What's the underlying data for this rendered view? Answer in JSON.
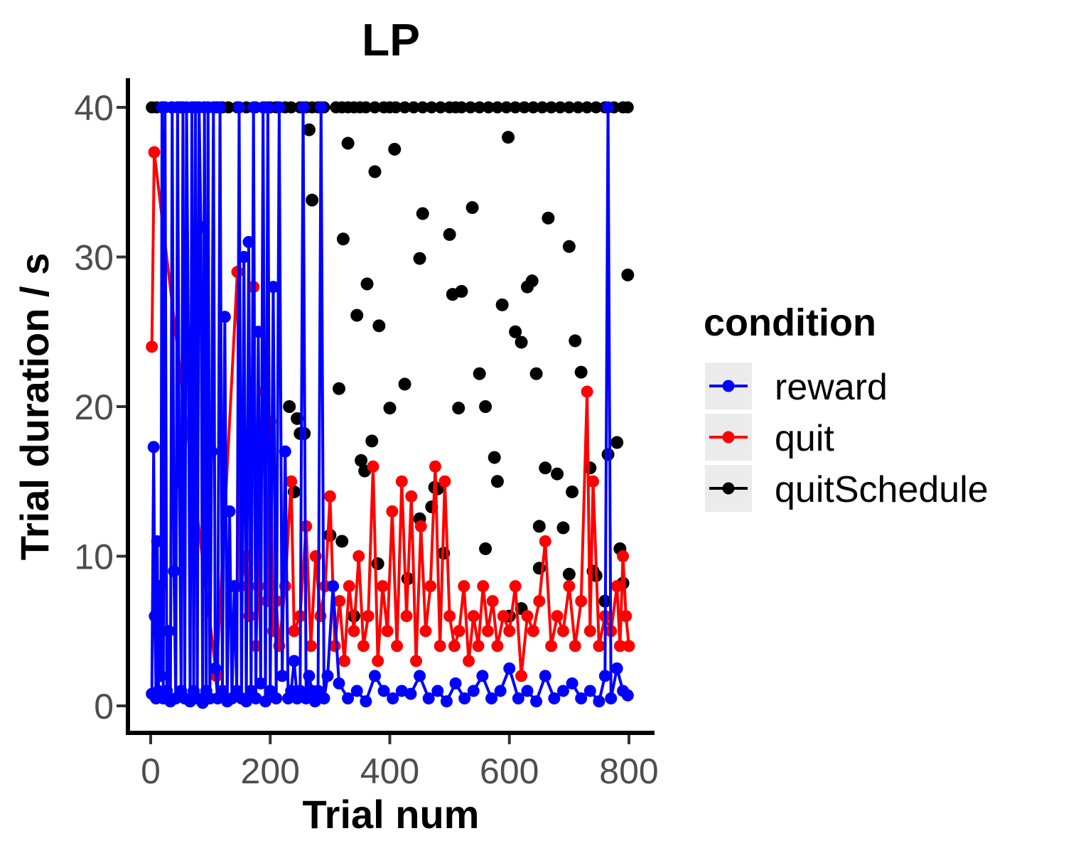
{
  "chart_data": {
    "type": "line",
    "title": "LP",
    "xlabel": "Trial num",
    "ylabel": "Trial duration / s",
    "xlim": [
      -5,
      805
    ],
    "ylim": [
      -2,
      42
    ],
    "x_ticks": [
      0,
      200,
      400,
      600,
      800
    ],
    "y_ticks": [
      0,
      10,
      20,
      30,
      40
    ],
    "legend": {
      "title": "condition",
      "position": "right"
    },
    "grid": false,
    "series": [
      {
        "name": "reward",
        "color": "#0000ff",
        "x": [
          2,
          5,
          7,
          9,
          11,
          13,
          15,
          17,
          19,
          21,
          24,
          27,
          30,
          33,
          36,
          39,
          42,
          45,
          48,
          51,
          54,
          57,
          60,
          63,
          66,
          69,
          72,
          75,
          78,
          81,
          84,
          87,
          90,
          93,
          96,
          99,
          102,
          105,
          108,
          112,
          116,
          120,
          124,
          128,
          132,
          136,
          140,
          144,
          148,
          152,
          156,
          160,
          164,
          168,
          172,
          176,
          180,
          184,
          188,
          192,
          196,
          200,
          205,
          210,
          215,
          220,
          225,
          230,
          235,
          240,
          245,
          250,
          255,
          260,
          265,
          270,
          275,
          280,
          285,
          290,
          296,
          305,
          315,
          330,
          345,
          360,
          375,
          390,
          405,
          420,
          435,
          450,
          465,
          480,
          495,
          510,
          525,
          540,
          555,
          570,
          585,
          600,
          615,
          630,
          645,
          660,
          675,
          690,
          705,
          720,
          735,
          750,
          760,
          765,
          770,
          780,
          790,
          798
        ],
        "y": [
          0.8,
          17.3,
          6,
          0.5,
          11,
          1,
          8,
          2,
          40,
          0.5,
          40,
          1,
          5,
          0.3,
          40,
          9,
          0.5,
          40,
          15,
          1,
          40,
          0.5,
          40,
          25,
          0.3,
          40,
          1,
          40,
          0.5,
          40,
          32,
          0.2,
          40,
          1,
          40,
          0.5,
          17,
          40,
          2.5,
          0.5,
          40,
          1,
          26,
          0.3,
          13,
          0.5,
          8,
          1,
          40,
          0.5,
          30,
          0.3,
          31,
          1,
          40,
          0.5,
          25,
          1.5,
          40,
          0.3,
          40,
          1,
          28,
          0.5,
          40,
          2,
          17,
          0.5,
          1,
          3,
          0.5,
          1,
          40,
          0.5,
          2,
          1,
          0.3,
          1,
          40,
          0.5,
          2,
          8,
          1.5,
          0.5,
          1,
          0.3,
          2,
          1,
          0.5,
          1,
          0.8,
          2,
          0.5,
          1,
          0.3,
          1.5,
          0.5,
          1,
          2,
          0.5,
          1,
          2.5,
          0.5,
          1,
          0.3,
          2,
          0.5,
          1,
          1.5,
          0.5,
          1,
          0.3,
          2,
          40,
          0.5,
          2.5,
          1,
          0.7
        ]
      },
      {
        "name": "quit",
        "color": "#ff0000",
        "x": [
          2,
          6,
          110,
          145,
          150,
          160,
          165,
          172,
          176,
          180,
          190,
          195,
          200,
          205,
          210,
          215,
          225,
          235,
          240,
          250,
          260,
          268,
          276,
          284,
          292,
          300,
          308,
          316,
          324,
          332,
          340,
          348,
          356,
          364,
          372,
          380,
          388,
          396,
          404,
          412,
          420,
          428,
          436,
          444,
          452,
          460,
          468,
          476,
          484,
          492,
          500,
          508,
          516,
          524,
          532,
          540,
          548,
          556,
          564,
          572,
          580,
          590,
          600,
          610,
          620,
          630,
          640,
          650,
          660,
          670,
          680,
          690,
          700,
          710,
          720,
          730,
          735,
          740,
          750,
          760,
          770,
          780,
          785,
          790,
          795,
          800
        ],
        "y": [
          24,
          37,
          2,
          29,
          8,
          10,
          6,
          28,
          4,
          8,
          21,
          7,
          19,
          5,
          7,
          4,
          8,
          15,
          5,
          6,
          12,
          4,
          10,
          6,
          8,
          14,
          4,
          7,
          3,
          8,
          5,
          10,
          4,
          6,
          16,
          3,
          8,
          5,
          13,
          4,
          15,
          6,
          14,
          3,
          12,
          5,
          8,
          16,
          4,
          15,
          6,
          4,
          5,
          8,
          3,
          6,
          4,
          8,
          5,
          7,
          4,
          6,
          5,
          8,
          2,
          6,
          5,
          7,
          11,
          4,
          6,
          5,
          8,
          4,
          7,
          21,
          5,
          15,
          4,
          6,
          5,
          8,
          4,
          10,
          6,
          4
        ]
      },
      {
        "name": "quitSchedule",
        "color": "#000000",
        "x": [
          2,
          10,
          20,
          35,
          50,
          70,
          90,
          110,
          120,
          130,
          145,
          160,
          175,
          190,
          200,
          210,
          225,
          235,
          250,
          260,
          270,
          280,
          290,
          310,
          320,
          330,
          340,
          350,
          360,
          375,
          390,
          400,
          410,
          425,
          440,
          455,
          470,
          485,
          500,
          510,
          520,
          535,
          550,
          565,
          580,
          595,
          610,
          625,
          640,
          655,
          670,
          685,
          700,
          715,
          730,
          745,
          760,
          775,
          790,
          798
        ],
        "y": [
          40,
          40,
          40,
          40,
          40,
          40,
          40,
          40,
          40,
          40,
          40,
          40,
          40,
          40,
          40,
          40,
          40,
          40,
          40,
          40,
          40,
          40,
          40,
          40,
          40,
          40,
          40,
          40,
          40,
          40,
          40,
          40,
          40,
          40,
          40,
          40,
          40,
          40,
          40,
          40,
          40,
          40,
          40,
          40,
          40,
          40,
          40,
          40,
          40,
          40,
          40,
          40,
          40,
          40,
          40,
          40,
          40,
          40,
          40,
          40
        ],
        "scatter_x": [
          265,
          270,
          232,
          245,
          257,
          315,
          322,
          330,
          345,
          352,
          358,
          362,
          370,
          375,
          382,
          400,
          408,
          425,
          450,
          455,
          470,
          475,
          480,
          490,
          500,
          505,
          515,
          520,
          538,
          550,
          560,
          575,
          580,
          588,
          598,
          610,
          620,
          630,
          638,
          645,
          660,
          665,
          680,
          690,
          700,
          705,
          710,
          720,
          735,
          745,
          765,
          780,
          785,
          790,
          798,
          600,
          620,
          650,
          700,
          740,
          760,
          650,
          560,
          450,
          430,
          380,
          340,
          320,
          300,
          250,
          240
        ],
        "scatter_y": [
          38.5,
          33.8,
          20,
          19.2,
          18.2,
          21.2,
          31.2,
          37.6,
          26.1,
          16.4,
          15.7,
          28.2,
          17.7,
          35.7,
          25.4,
          19.9,
          37.2,
          21.5,
          29.9,
          32.9,
          13.3,
          14.6,
          14.5,
          10.2,
          31.5,
          27.5,
          19.9,
          27.7,
          33.3,
          22.2,
          20,
          16.6,
          15,
          26.8,
          38,
          25,
          24.3,
          28,
          28.4,
          22.2,
          15.9,
          32.6,
          15.5,
          11.9,
          30.7,
          14.3,
          24.4,
          22.3,
          15.9,
          8.7,
          16.8,
          17.6,
          10.5,
          8.2,
          28.8,
          6,
          6.5,
          9.2,
          8.8,
          9,
          7,
          12,
          10.5,
          12.5,
          8.5,
          9.5,
          6,
          11,
          11.4,
          18.2,
          14.3
        ]
      }
    ]
  }
}
